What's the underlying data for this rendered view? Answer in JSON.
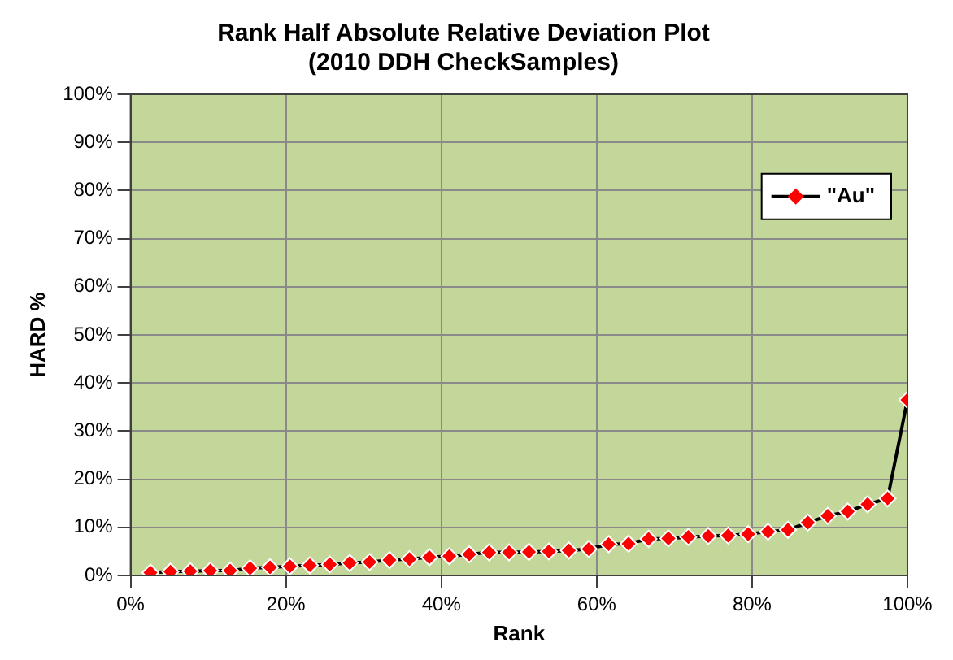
{
  "chart_data": {
    "type": "line",
    "title": [
      "Rank Half Absolute Relative Deviation Plot",
      "(2010 DDH CheckSamples)"
    ],
    "xlabel": "Rank",
    "ylabel": "HARD %",
    "xlim": [
      0,
      100
    ],
    "xticks": [
      {
        "value": 0,
        "label": "0%"
      },
      {
        "value": 20,
        "label": "20%"
      },
      {
        "value": 40,
        "label": "40%"
      },
      {
        "value": 60,
        "label": "60%"
      },
      {
        "value": 80,
        "label": "80%"
      },
      {
        "value": 100,
        "label": "100%"
      }
    ],
    "ylim": [
      0,
      100
    ],
    "yticks": [
      {
        "value": 0,
        "label": "0%"
      },
      {
        "value": 10,
        "label": "10%"
      },
      {
        "value": 20,
        "label": "20%"
      },
      {
        "value": 30,
        "label": "30%"
      },
      {
        "value": 40,
        "label": "40%"
      },
      {
        "value": 50,
        "label": "50%"
      },
      {
        "value": 60,
        "label": "60%"
      },
      {
        "value": 70,
        "label": "70%"
      },
      {
        "value": 80,
        "label": "80%"
      },
      {
        "value": 90,
        "label": "90%"
      },
      {
        "value": 100,
        "label": "100%"
      }
    ],
    "grid": true,
    "legend": "top right",
    "marker": "diamond",
    "line_style": "solid",
    "series": [
      {
        "name": "\"Au\"",
        "color": "#ff0000",
        "x": [
          2.56,
          5.13,
          7.69,
          10.26,
          12.82,
          15.38,
          17.95,
          20.51,
          23.08,
          25.64,
          28.21,
          30.77,
          33.33,
          35.9,
          38.46,
          41.03,
          43.59,
          46.15,
          48.72,
          51.28,
          53.85,
          56.41,
          58.97,
          61.54,
          64.1,
          66.67,
          69.23,
          71.79,
          74.36,
          76.92,
          79.49,
          82.05,
          84.62,
          87.18,
          89.74,
          92.31,
          94.87,
          97.44,
          100
        ],
        "values": [
          0.6,
          0.8,
          0.9,
          1.0,
          1.0,
          1.5,
          1.7,
          1.9,
          2.1,
          2.3,
          2.6,
          2.8,
          3.2,
          3.4,
          3.8,
          4.0,
          4.4,
          4.8,
          4.8,
          4.9,
          5.0,
          5.2,
          5.5,
          6.5,
          6.6,
          7.6,
          7.7,
          8.0,
          8.2,
          8.3,
          8.6,
          9.1,
          9.5,
          11.0,
          12.4,
          13.3,
          14.8,
          16.0,
          36.5
        ]
      }
    ]
  }
}
